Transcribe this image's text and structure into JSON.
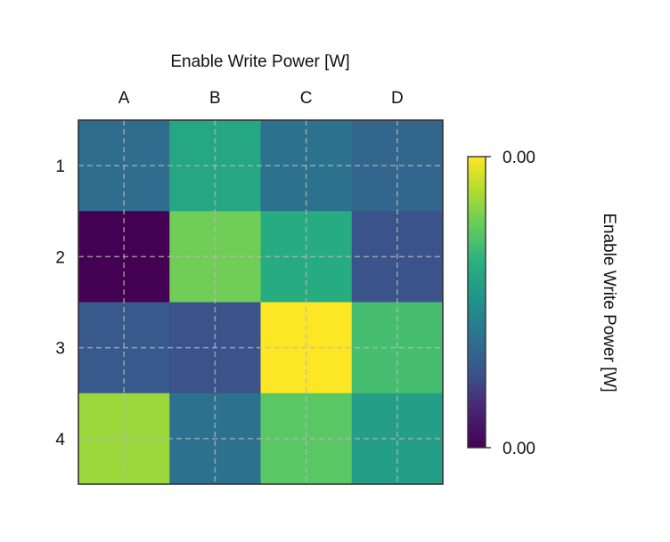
{
  "chart_data": {
    "type": "heatmap",
    "title": "Enable Write Power [W]",
    "xlabel": "",
    "ylabel": "",
    "x_categories": [
      "A",
      "B",
      "C",
      "D"
    ],
    "y_categories": [
      "1",
      "2",
      "3",
      "4"
    ],
    "values": [
      [
        0.36,
        0.6,
        0.38,
        0.33
      ],
      [
        0.0,
        0.78,
        0.62,
        0.26
      ],
      [
        0.28,
        0.25,
        1.0,
        0.7
      ],
      [
        0.85,
        0.38,
        0.74,
        0.56
      ]
    ],
    "colormap": "viridis",
    "grid": true,
    "colorbar": {
      "label": "Enable Write Power [W]",
      "tick_labels": [
        "0.00",
        "0.00"
      ],
      "placement": "right"
    }
  }
}
